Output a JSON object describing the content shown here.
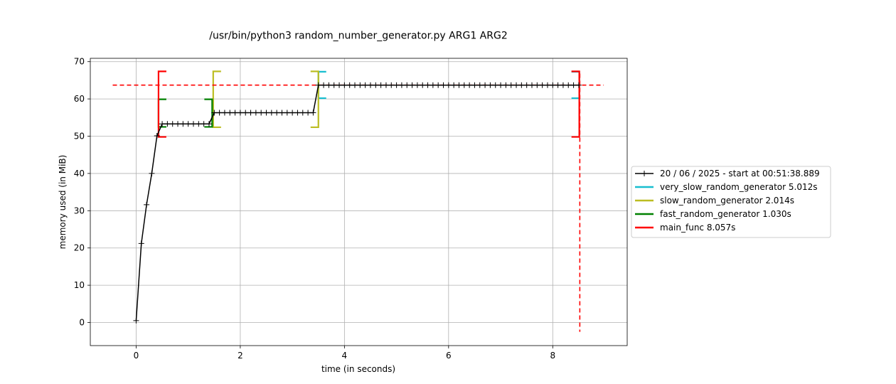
{
  "chart_data": {
    "type": "line",
    "title": "/usr/bin/python3 random_number_generator.py ARG1 ARG2",
    "xlabel": "time (in seconds)",
    "ylabel": "memory used (in MiB)",
    "xlim": [
      -0.88,
      9.43
    ],
    "ylim": [
      -6.2,
      70.9
    ],
    "xticks": [
      0,
      2,
      4,
      6,
      8
    ],
    "yticks": [
      0,
      10,
      20,
      30,
      40,
      50,
      60,
      70
    ],
    "grid": true,
    "legend_position": "right",
    "memory_series": {
      "name": "20 / 06 / 2025 - start at 00:51:38.889",
      "color": "#000000",
      "x": [
        0.0,
        0.1,
        0.2,
        0.3,
        0.4,
        0.5,
        0.6,
        0.7,
        0.8,
        0.9,
        1.0,
        1.1,
        1.2,
        1.3,
        1.4,
        1.5,
        1.6,
        1.7,
        1.8,
        1.9,
        2.0,
        2.1,
        2.2,
        2.3,
        2.4,
        2.5,
        2.6,
        2.7,
        2.8,
        2.9,
        3.0,
        3.1,
        3.2,
        3.3,
        3.4,
        3.5,
        3.6,
        3.7,
        3.8,
        3.9,
        4.0,
        4.1,
        4.2,
        4.3,
        4.4,
        4.5,
        4.6,
        4.7,
        4.8,
        4.9,
        5.0,
        5.1,
        5.2,
        5.3,
        5.4,
        5.5,
        5.6,
        5.7,
        5.8,
        5.9,
        6.0,
        6.1,
        6.2,
        6.3,
        6.4,
        6.5,
        6.6,
        6.7,
        6.8,
        6.9,
        7.0,
        7.1,
        7.2,
        7.3,
        7.4,
        7.5,
        7.6,
        7.7,
        7.8,
        7.9,
        8.0,
        8.1,
        8.2,
        8.3,
        8.4,
        8.5
      ],
      "y": [
        0.5,
        21.2,
        31.6,
        40.0,
        50.1,
        53.3,
        53.3,
        53.3,
        53.3,
        53.3,
        53.3,
        53.3,
        53.3,
        53.3,
        53.3,
        56.3,
        56.3,
        56.3,
        56.3,
        56.3,
        56.3,
        56.3,
        56.3,
        56.3,
        56.3,
        56.3,
        56.3,
        56.3,
        56.3,
        56.3,
        56.3,
        56.3,
        56.3,
        56.3,
        56.3,
        63.7,
        63.7,
        63.7,
        63.7,
        63.7,
        63.7,
        63.7,
        63.7,
        63.7,
        63.7,
        63.7,
        63.7,
        63.7,
        63.7,
        63.7,
        63.7,
        63.7,
        63.7,
        63.7,
        63.7,
        63.7,
        63.7,
        63.7,
        63.7,
        63.7,
        63.7,
        63.7,
        63.7,
        63.7,
        63.7,
        63.7,
        63.7,
        63.7,
        63.7,
        63.7,
        63.7,
        63.7,
        63.7,
        63.7,
        63.7,
        63.7,
        63.7,
        63.7,
        63.7,
        63.7,
        63.7,
        63.7,
        63.7,
        63.7,
        63.7,
        63.7
      ]
    },
    "function_brackets": [
      {
        "name": "very_slow_random_generator 5.012s",
        "color": "#17becf",
        "start": 3.5,
        "end": 8.51,
        "y_low": 60.2,
        "y_high": 67.3
      },
      {
        "name": "slow_random_generator 2.014s",
        "color": "#bcbd22",
        "start": 1.48,
        "end": 3.5,
        "y_low": 52.4,
        "y_high": 67.4
      },
      {
        "name": "fast_random_generator 1.030s",
        "color": "#008000",
        "start": 0.43,
        "end": 1.46,
        "y_low": 52.5,
        "y_high": 59.9
      },
      {
        "name": "main_func 8.057s",
        "color": "#ff0000",
        "start": 0.43,
        "end": 8.51,
        "y_low": 49.8,
        "y_high": 67.4
      }
    ],
    "peak_hline": {
      "y": 63.7,
      "xmin": -0.45,
      "xmax": 8.98,
      "color": "#ff0000"
    },
    "end_vline": {
      "x": 8.52,
      "ymin": -2.5,
      "ymax": 66.8,
      "color": "#ff0000"
    }
  }
}
